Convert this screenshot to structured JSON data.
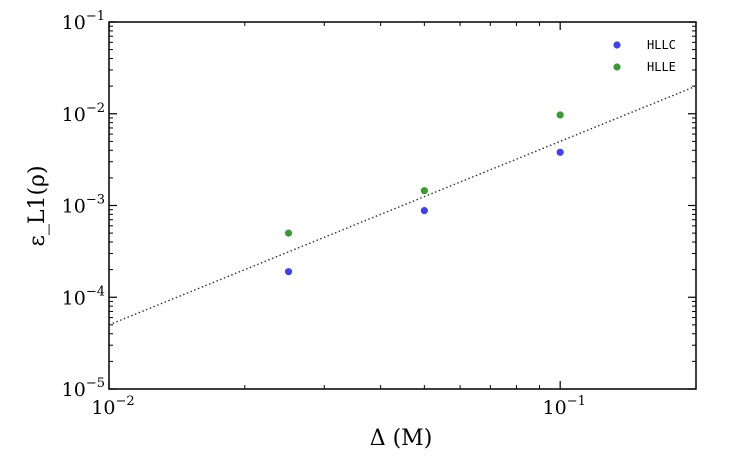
{
  "chart_data": {
    "type": "scatter",
    "title": "",
    "xlabel": "Δ (M)",
    "ylabel": "ε_L1(ρ)",
    "xscale": "log",
    "yscale": "log",
    "xlim": [
      0.01,
      0.2
    ],
    "ylim": [
      1e-05,
      0.1
    ],
    "grid": false,
    "legend_position": "top-right",
    "x_ticks": [
      {
        "value": 0.01,
        "base": "10",
        "exp": "−2"
      },
      {
        "value": 0.1,
        "base": "10",
        "exp": "−1"
      }
    ],
    "y_ticks": [
      {
        "value": 1e-05,
        "base": "10",
        "exp": "−5"
      },
      {
        "value": 0.0001,
        "base": "10",
        "exp": "−4"
      },
      {
        "value": 0.001,
        "base": "10",
        "exp": "−3"
      },
      {
        "value": 0.01,
        "base": "10",
        "exp": "−2"
      },
      {
        "value": 0.1,
        "base": "10",
        "exp": "−1"
      }
    ],
    "series": [
      {
        "name": "HLLC",
        "color": "#3f3ff5",
        "x": [
          0.025,
          0.05,
          0.1
        ],
        "y": [
          0.00019,
          0.00088,
          0.0038
        ]
      },
      {
        "name": "HLLE",
        "color": "#3c9a32",
        "x": [
          0.025,
          0.05,
          0.1
        ],
        "y": [
          0.0005,
          0.00145,
          0.0097
        ]
      }
    ],
    "reference_line": {
      "style": "dotted",
      "color": "#333333",
      "x": [
        0.01,
        0.2
      ],
      "y": [
        5e-05,
        0.02
      ]
    }
  }
}
